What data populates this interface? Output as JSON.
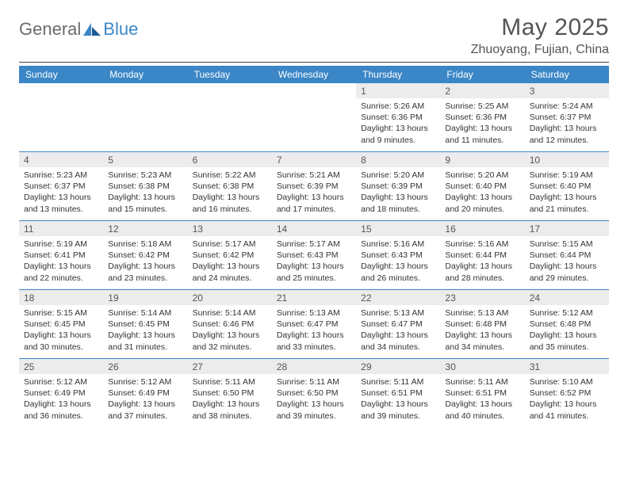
{
  "brand": {
    "word1": "General",
    "word2": "Blue"
  },
  "colors": {
    "accent": "#3b86c6",
    "header_bg": "#3b86c6",
    "header_fg": "#ffffff",
    "daynum_bg": "#ececec",
    "text": "#333333",
    "muted": "#555555",
    "rule": "#404040"
  },
  "title": "May 2025",
  "location": "Zhuoyang, Fujian, China",
  "dow": [
    "Sunday",
    "Monday",
    "Tuesday",
    "Wednesday",
    "Thursday",
    "Friday",
    "Saturday"
  ],
  "weeks": [
    [
      null,
      null,
      null,
      null,
      {
        "n": "1",
        "sr": "5:26 AM",
        "ss": "6:36 PM",
        "dl": "13 hours and 9 minutes."
      },
      {
        "n": "2",
        "sr": "5:25 AM",
        "ss": "6:36 PM",
        "dl": "13 hours and 11 minutes."
      },
      {
        "n": "3",
        "sr": "5:24 AM",
        "ss": "6:37 PM",
        "dl": "13 hours and 12 minutes."
      }
    ],
    [
      {
        "n": "4",
        "sr": "5:23 AM",
        "ss": "6:37 PM",
        "dl": "13 hours and 13 minutes."
      },
      {
        "n": "5",
        "sr": "5:23 AM",
        "ss": "6:38 PM",
        "dl": "13 hours and 15 minutes."
      },
      {
        "n": "6",
        "sr": "5:22 AM",
        "ss": "6:38 PM",
        "dl": "13 hours and 16 minutes."
      },
      {
        "n": "7",
        "sr": "5:21 AM",
        "ss": "6:39 PM",
        "dl": "13 hours and 17 minutes."
      },
      {
        "n": "8",
        "sr": "5:20 AM",
        "ss": "6:39 PM",
        "dl": "13 hours and 18 minutes."
      },
      {
        "n": "9",
        "sr": "5:20 AM",
        "ss": "6:40 PM",
        "dl": "13 hours and 20 minutes."
      },
      {
        "n": "10",
        "sr": "5:19 AM",
        "ss": "6:40 PM",
        "dl": "13 hours and 21 minutes."
      }
    ],
    [
      {
        "n": "11",
        "sr": "5:19 AM",
        "ss": "6:41 PM",
        "dl": "13 hours and 22 minutes."
      },
      {
        "n": "12",
        "sr": "5:18 AM",
        "ss": "6:42 PM",
        "dl": "13 hours and 23 minutes."
      },
      {
        "n": "13",
        "sr": "5:17 AM",
        "ss": "6:42 PM",
        "dl": "13 hours and 24 minutes."
      },
      {
        "n": "14",
        "sr": "5:17 AM",
        "ss": "6:43 PM",
        "dl": "13 hours and 25 minutes."
      },
      {
        "n": "15",
        "sr": "5:16 AM",
        "ss": "6:43 PM",
        "dl": "13 hours and 26 minutes."
      },
      {
        "n": "16",
        "sr": "5:16 AM",
        "ss": "6:44 PM",
        "dl": "13 hours and 28 minutes."
      },
      {
        "n": "17",
        "sr": "5:15 AM",
        "ss": "6:44 PM",
        "dl": "13 hours and 29 minutes."
      }
    ],
    [
      {
        "n": "18",
        "sr": "5:15 AM",
        "ss": "6:45 PM",
        "dl": "13 hours and 30 minutes."
      },
      {
        "n": "19",
        "sr": "5:14 AM",
        "ss": "6:45 PM",
        "dl": "13 hours and 31 minutes."
      },
      {
        "n": "20",
        "sr": "5:14 AM",
        "ss": "6:46 PM",
        "dl": "13 hours and 32 minutes."
      },
      {
        "n": "21",
        "sr": "5:13 AM",
        "ss": "6:47 PM",
        "dl": "13 hours and 33 minutes."
      },
      {
        "n": "22",
        "sr": "5:13 AM",
        "ss": "6:47 PM",
        "dl": "13 hours and 34 minutes."
      },
      {
        "n": "23",
        "sr": "5:13 AM",
        "ss": "6:48 PM",
        "dl": "13 hours and 34 minutes."
      },
      {
        "n": "24",
        "sr": "5:12 AM",
        "ss": "6:48 PM",
        "dl": "13 hours and 35 minutes."
      }
    ],
    [
      {
        "n": "25",
        "sr": "5:12 AM",
        "ss": "6:49 PM",
        "dl": "13 hours and 36 minutes."
      },
      {
        "n": "26",
        "sr": "5:12 AM",
        "ss": "6:49 PM",
        "dl": "13 hours and 37 minutes."
      },
      {
        "n": "27",
        "sr": "5:11 AM",
        "ss": "6:50 PM",
        "dl": "13 hours and 38 minutes."
      },
      {
        "n": "28",
        "sr": "5:11 AM",
        "ss": "6:50 PM",
        "dl": "13 hours and 39 minutes."
      },
      {
        "n": "29",
        "sr": "5:11 AM",
        "ss": "6:51 PM",
        "dl": "13 hours and 39 minutes."
      },
      {
        "n": "30",
        "sr": "5:11 AM",
        "ss": "6:51 PM",
        "dl": "13 hours and 40 minutes."
      },
      {
        "n": "31",
        "sr": "5:10 AM",
        "ss": "6:52 PM",
        "dl": "13 hours and 41 minutes."
      }
    ]
  ],
  "labels": {
    "sunrise": "Sunrise:",
    "sunset": "Sunset:",
    "daylight": "Daylight:"
  }
}
